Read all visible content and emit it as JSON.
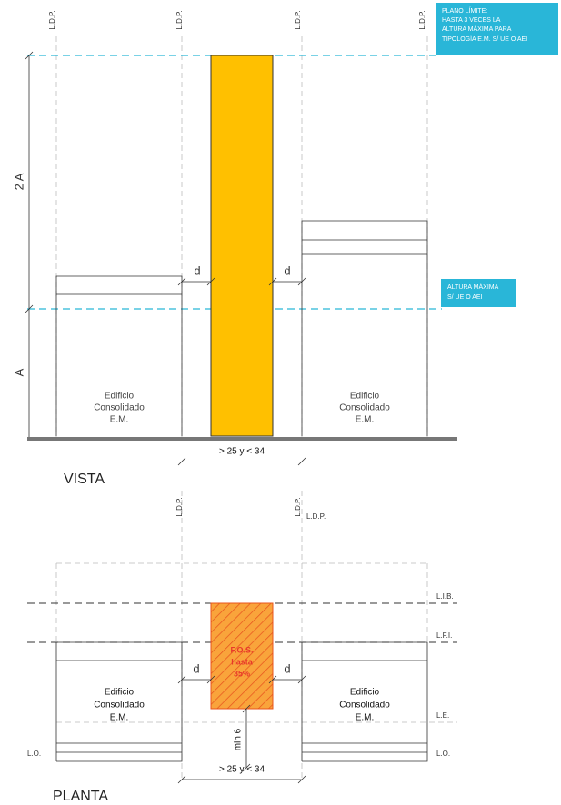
{
  "vista": {
    "ldp_labels": [
      "L.D.P.",
      "L.D.P.",
      "L.D.P.",
      "L.D.P."
    ],
    "limit_note": [
      "PLANO LÍMITE:",
      "HASTA 3 VECES LA",
      "ALTURA MÁXIMA PARA",
      "TIPOLOGÍA E.M. S/ UE O AEI"
    ],
    "height_labels": [
      "2 A",
      "A"
    ],
    "gap_labels": [
      "d",
      "d"
    ],
    "max_height_note": [
      "ALTURA MÁXIMA",
      "S/ UE O AEI"
    ],
    "buildings": [
      [
        "Edificio",
        "Consolidado",
        "E.M."
      ],
      [
        "Edificio",
        "Consolidado",
        "E.M."
      ]
    ],
    "frontage": "> 25 y < 34",
    "title": "VISTA"
  },
  "planta": {
    "ldp_labels": [
      "L.D.P.",
      "L.D.P.",
      "L.D.P."
    ],
    "line_labels": [
      "L.I.B.",
      "L.F.I.",
      "L.E.",
      "L.O.",
      "L.O."
    ],
    "fos_note": [
      "F.O.S.",
      "hasta",
      "35%"
    ],
    "gap_labels": [
      "d",
      "d"
    ],
    "buildings": [
      [
        "Edificio",
        "Consolidado",
        "E.M."
      ],
      [
        "Edificio",
        "Consolidado",
        "E.M."
      ]
    ],
    "min_label": "min 6",
    "frontage": "> 25 y < 34",
    "title": "PLANTA"
  }
}
